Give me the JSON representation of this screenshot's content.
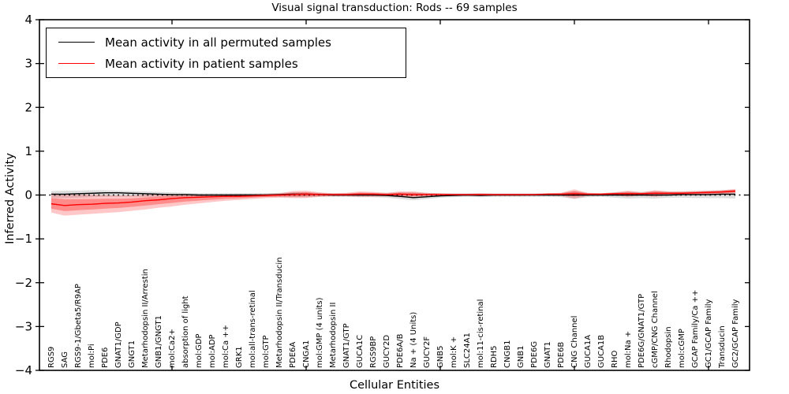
{
  "colors": {
    "permuted_line": "#000000",
    "patient_line": "#ff0000",
    "permuted_band": "rgba(0,0,0,0.13)",
    "patient_band_outer": "rgba(255,0,0,0.22)",
    "patient_band_inner": "rgba(255,0,0,0.30)",
    "axis": "#000000"
  },
  "chart_data": {
    "type": "line",
    "title": "Visual signal transduction: Rods -- 69 samples",
    "xlabel": "Cellular Entities",
    "ylabel": "Inferred Activity",
    "ylim": [
      -4,
      4
    ],
    "yticks": [
      4,
      3,
      2,
      1,
      0,
      -1,
      -2,
      -3,
      -4
    ],
    "ytick_labels": [
      "4",
      "3",
      "2",
      "1",
      "0",
      "−1",
      "−2",
      "−3",
      "−4"
    ],
    "grid": false,
    "zero_line": true,
    "legend_position": "upper left",
    "categories": [
      "RGS9",
      "SAG",
      "RGS9-1/Gbeta5/R9AP",
      "mol:Pi",
      "PDE6",
      "GNAT1/GDP",
      "GNGT1",
      "Metarhodopsin II/Arrestin",
      "GNB1/GNGT1",
      "mol:Ca2+",
      "absorption of light",
      "mol:GDP",
      "mol:ADP",
      "mol:Ca ++",
      "GRK1",
      "mol:all-trans-retinal",
      "mol:GTP",
      "Metarhodopsin II/Transducin",
      "PDE6A",
      "CNGA1",
      "mol:GMP (4 units)",
      "Metarhodopsin II",
      "GNAT1/GTP",
      "GUCA1C",
      "RGS9BP",
      "GUCY2D",
      "PDE6A/B",
      "Na + (4 Units)",
      "GUCY2F",
      "GNB5",
      "mol:K +",
      "SLC24A1",
      "mol:11-cis-retinal",
      "RDH5",
      "CNGB1",
      "GNB1",
      "PDE6G",
      "GNAT1",
      "PDE6B",
      "CNG Channel",
      "GUCA1A",
      "GUCA1B",
      "RHO",
      "mol:Na +",
      "PDE6G/GNAT1/GTP",
      "cGMP/CNG Channel",
      "Rhodopsin",
      "mol:cGMP",
      "GCAP Family/Ca ++",
      "GC1/GCAP Family",
      "Transducin",
      "GC2/GCAP Family"
    ],
    "series": [
      {
        "name": "Mean activity in all permuted samples",
        "color": "#000000",
        "values": [
          0.02,
          0.02,
          0.03,
          0.04,
          0.05,
          0.05,
          0.04,
          0.03,
          0.02,
          0.01,
          0.01,
          0.0,
          0.0,
          0.0,
          0.0,
          0.0,
          0.0,
          0.01,
          0.02,
          0.02,
          0.01,
          0.0,
          0.0,
          0.0,
          0.0,
          -0.01,
          -0.03,
          -0.06,
          -0.04,
          -0.02,
          -0.01,
          0.0,
          -0.01,
          0.0,
          0.0,
          0.0,
          0.0,
          0.0,
          0.0,
          0.0,
          0.0,
          0.0,
          0.0,
          0.0,
          0.0,
          0.0,
          0.0,
          0.01,
          0.01,
          0.01,
          0.02,
          0.02
        ],
        "band_hi": [
          0.09,
          0.1,
          0.1,
          0.11,
          0.11,
          0.1,
          0.09,
          0.08,
          0.07,
          0.06,
          0.05,
          0.04,
          0.04,
          0.04,
          0.04,
          0.04,
          0.04,
          0.05,
          0.06,
          0.06,
          0.05,
          0.04,
          0.04,
          0.05,
          0.05,
          0.05,
          0.06,
          0.06,
          0.05,
          0.04,
          0.04,
          0.04,
          0.04,
          0.04,
          0.04,
          0.04,
          0.04,
          0.04,
          0.05,
          0.09,
          0.05,
          0.04,
          0.06,
          0.08,
          0.07,
          0.09,
          0.08,
          0.08,
          0.09,
          0.1,
          0.11,
          0.12
        ],
        "band_lo": [
          -0.06,
          -0.07,
          -0.06,
          -0.05,
          -0.04,
          -0.04,
          -0.04,
          -0.04,
          -0.04,
          -0.04,
          -0.04,
          -0.04,
          -0.04,
          -0.04,
          -0.04,
          -0.04,
          -0.04,
          -0.04,
          -0.05,
          -0.05,
          -0.04,
          -0.04,
          -0.04,
          -0.05,
          -0.05,
          -0.06,
          -0.09,
          -0.12,
          -0.09,
          -0.06,
          -0.05,
          -0.04,
          -0.05,
          -0.04,
          -0.04,
          -0.04,
          -0.04,
          -0.04,
          -0.05,
          -0.09,
          -0.05,
          -0.04,
          -0.06,
          -0.08,
          -0.07,
          -0.08,
          -0.06,
          -0.06,
          -0.07,
          -0.07,
          -0.07,
          -0.08
        ]
      },
      {
        "name": "Mean activity in patient samples",
        "color": "#ff0000",
        "values": [
          -0.2,
          -0.24,
          -0.22,
          -0.21,
          -0.19,
          -0.18,
          -0.16,
          -0.13,
          -0.11,
          -0.08,
          -0.06,
          -0.05,
          -0.04,
          -0.03,
          -0.03,
          -0.02,
          -0.01,
          0.0,
          0.01,
          0.02,
          0.01,
          0.01,
          0.01,
          0.02,
          0.02,
          0.01,
          0.02,
          0.01,
          0.01,
          0.01,
          0.01,
          0.01,
          0.01,
          0.01,
          0.01,
          0.01,
          0.01,
          0.02,
          0.02,
          0.03,
          0.02,
          0.02,
          0.03,
          0.03,
          0.03,
          0.04,
          0.04,
          0.04,
          0.05,
          0.06,
          0.07,
          0.09
        ],
        "band_hi": [
          0.04,
          0.02,
          0.01,
          0.01,
          0.0,
          -0.01,
          -0.01,
          0.01,
          0.02,
          0.02,
          0.01,
          0.01,
          0.01,
          0.01,
          0.02,
          0.02,
          0.03,
          0.04,
          0.09,
          0.1,
          0.06,
          0.04,
          0.05,
          0.08,
          0.07,
          0.05,
          0.08,
          0.08,
          0.05,
          0.04,
          0.03,
          0.03,
          0.04,
          0.03,
          0.03,
          0.03,
          0.03,
          0.04,
          0.05,
          0.13,
          0.05,
          0.04,
          0.06,
          0.1,
          0.06,
          0.11,
          0.08,
          0.08,
          0.09,
          0.1,
          0.11,
          0.14
        ],
        "band_lo": [
          -0.4,
          -0.47,
          -0.45,
          -0.43,
          -0.41,
          -0.39,
          -0.36,
          -0.33,
          -0.29,
          -0.26,
          -0.22,
          -0.19,
          -0.16,
          -0.13,
          -0.11,
          -0.09,
          -0.07,
          -0.06,
          -0.07,
          -0.07,
          -0.04,
          -0.03,
          -0.03,
          -0.04,
          -0.04,
          -0.03,
          -0.05,
          -0.05,
          -0.03,
          -0.02,
          -0.02,
          -0.02,
          -0.02,
          -0.02,
          -0.02,
          -0.02,
          -0.01,
          -0.01,
          -0.02,
          -0.08,
          -0.02,
          -0.01,
          -0.01,
          -0.04,
          -0.01,
          -0.04,
          0.0,
          0.0,
          0.01,
          0.01,
          0.02,
          0.04
        ]
      }
    ]
  }
}
